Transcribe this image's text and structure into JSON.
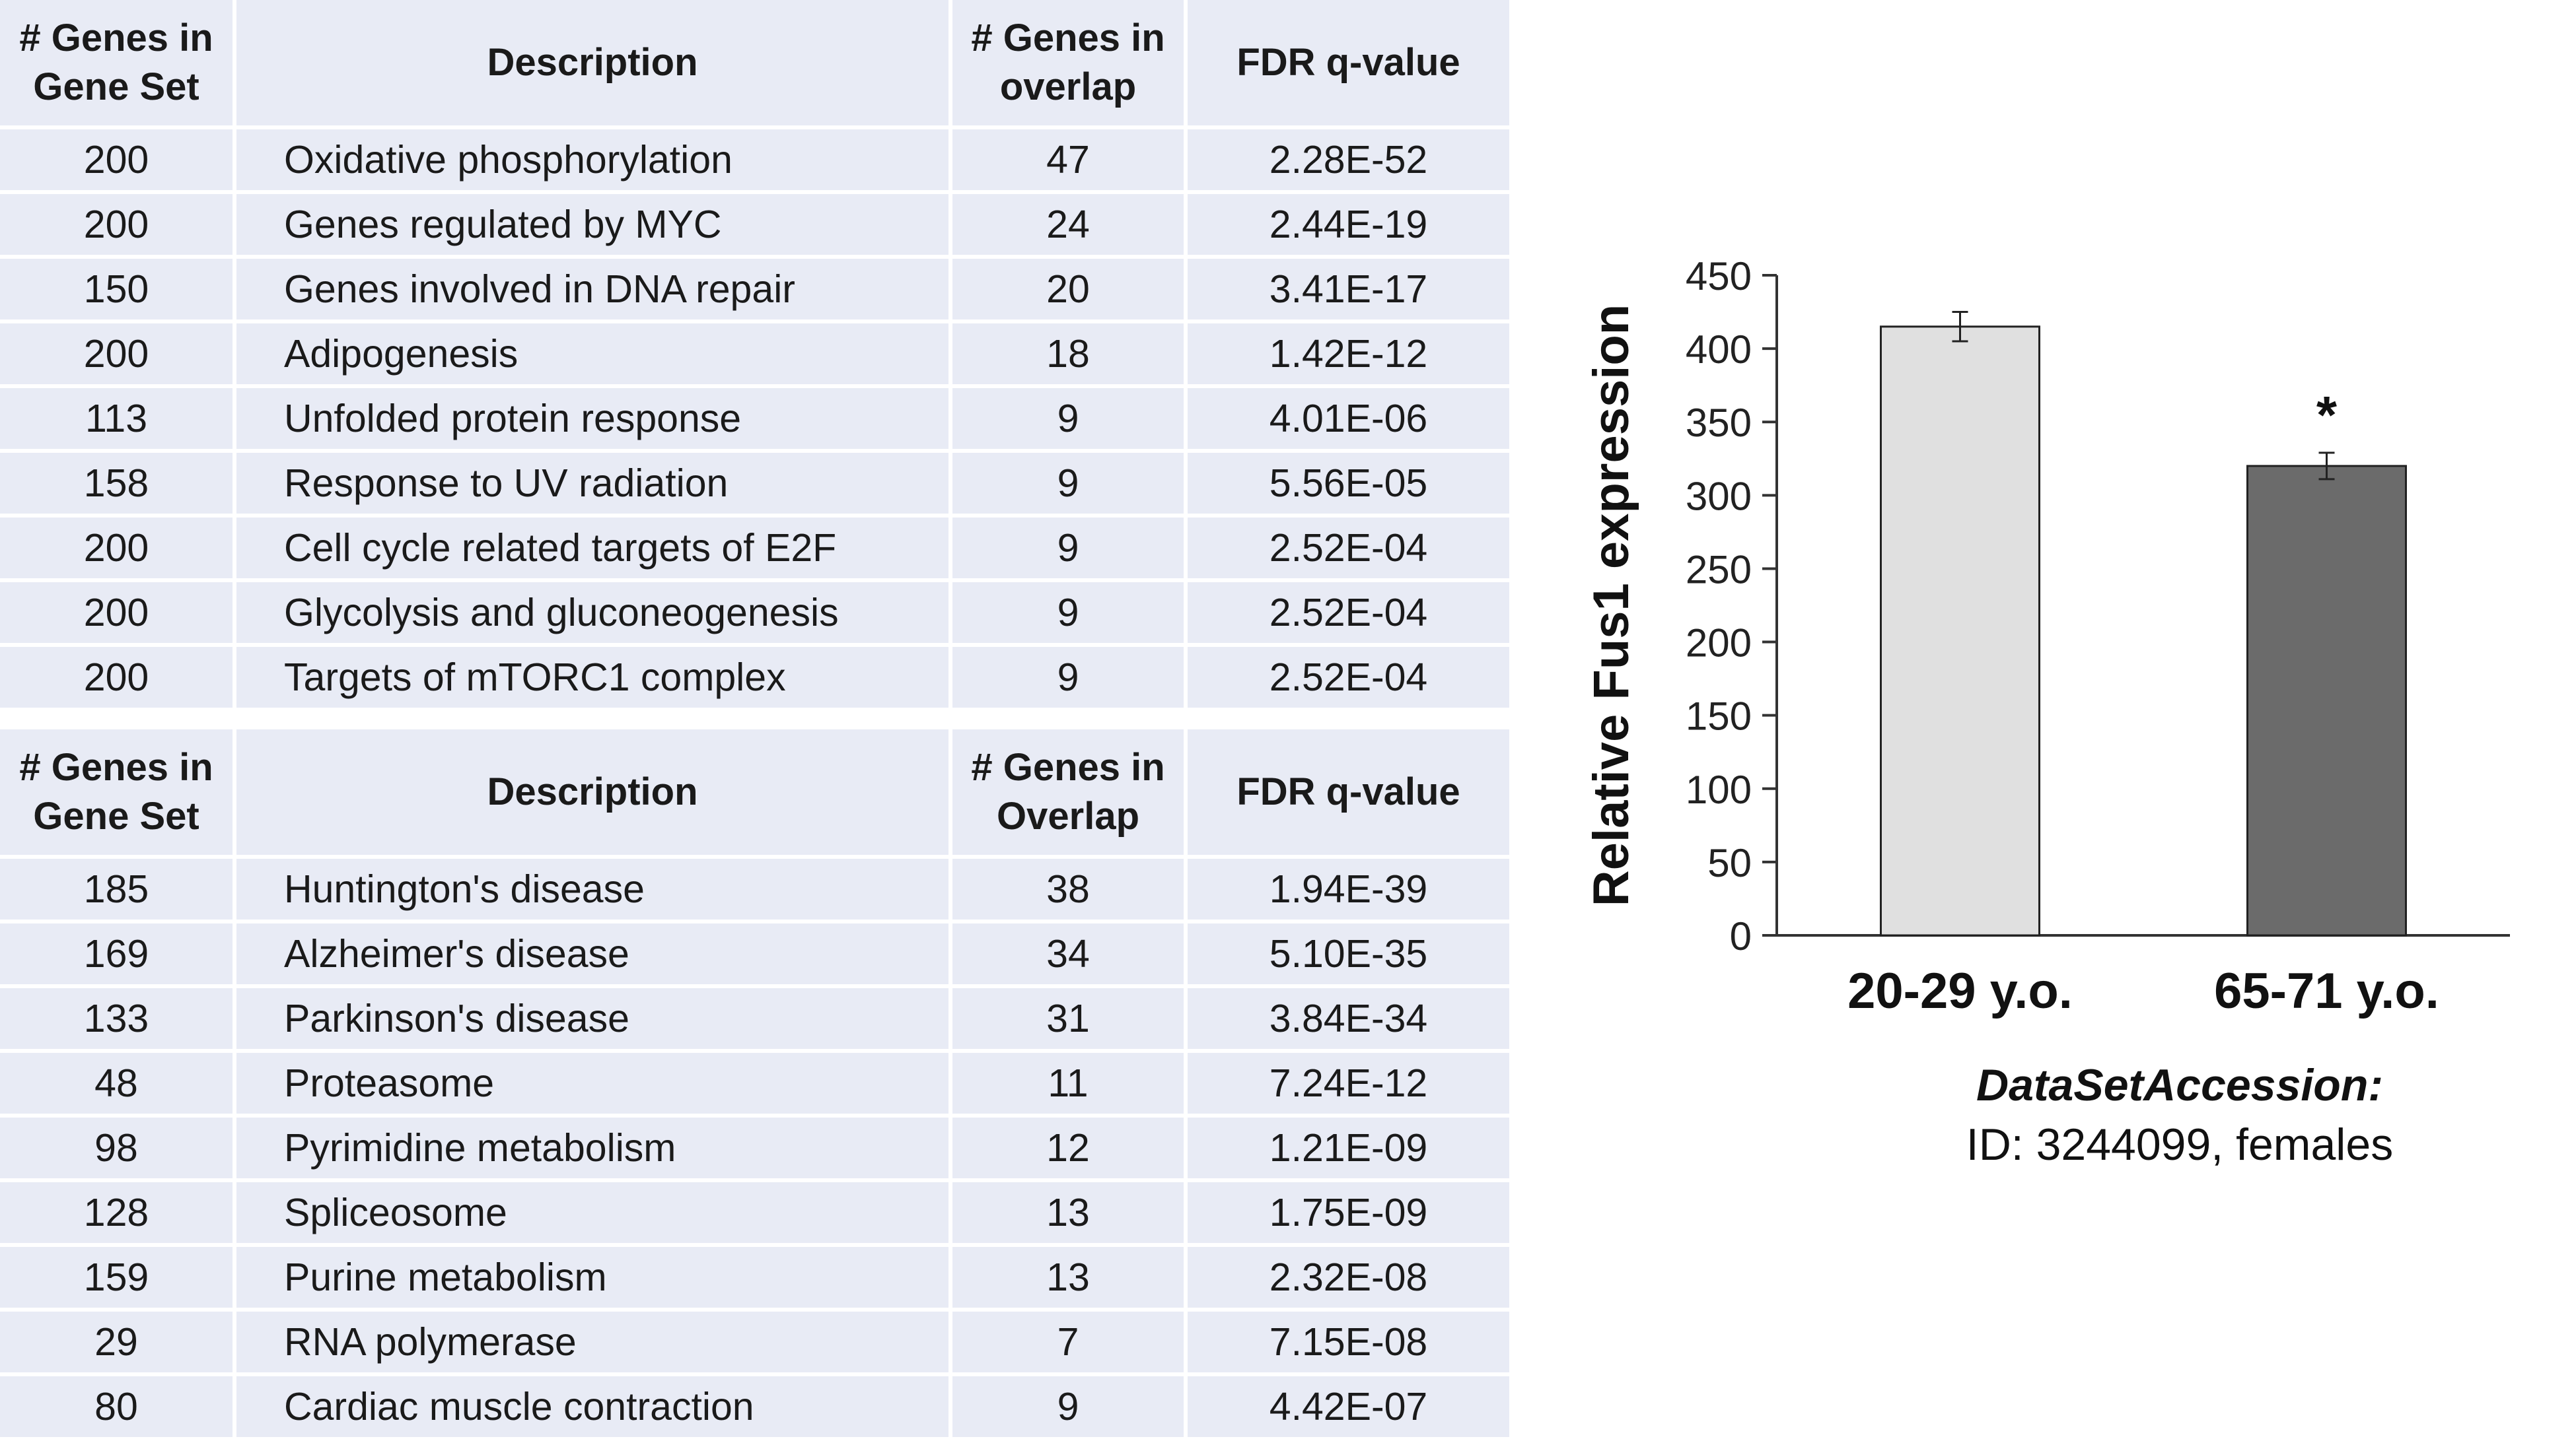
{
  "tables": {
    "top": {
      "headers": [
        "# Genes in Gene Set",
        "Description",
        "# Genes in overlap",
        "FDR q-value"
      ],
      "rows": [
        [
          "200",
          "Oxidative phosphorylation",
          "47",
          "2.28E-52"
        ],
        [
          "200",
          "Genes regulated by MYC",
          "24",
          "2.44E-19"
        ],
        [
          "150",
          "Genes involved in DNA repair",
          "20",
          "3.41E-17"
        ],
        [
          "200",
          "Adipogenesis",
          "18",
          "1.42E-12"
        ],
        [
          "113",
          "Unfolded protein response",
          "9",
          "4.01E-06"
        ],
        [
          "158",
          "Response to UV radiation",
          "9",
          "5.56E-05"
        ],
        [
          "200",
          "Cell cycle related targets of E2F",
          "9",
          "2.52E-04"
        ],
        [
          "200",
          "Glycolysis and gluconeogenesis",
          "9",
          "2.52E-04"
        ],
        [
          "200",
          "Targets of mTORC1 complex",
          "9",
          "2.52E-04"
        ]
      ]
    },
    "bottom": {
      "headers": [
        "# Genes in Gene Set",
        "Description",
        "# Genes in Overlap",
        "FDR q-value"
      ],
      "rows": [
        [
          "185",
          "Huntington's disease",
          "38",
          "1.94E-39"
        ],
        [
          "169",
          "Alzheimer's disease",
          "34",
          "5.10E-35"
        ],
        [
          "133",
          "Parkinson's disease",
          "31",
          "3.84E-34"
        ],
        [
          "48",
          "Proteasome",
          "11",
          "7.24E-12"
        ],
        [
          "98",
          "Pyrimidine metabolism",
          "12",
          "1.21E-09"
        ],
        [
          "128",
          "Spliceosome",
          "13",
          "1.75E-09"
        ],
        [
          "159",
          "Purine metabolism",
          "13",
          "2.32E-08"
        ],
        [
          "29",
          "RNA polymerase",
          "7",
          "7.15E-08"
        ],
        [
          "80",
          "Cardiac muscle contraction",
          "9",
          "4.42E-07"
        ]
      ]
    }
  },
  "chart_data": {
    "type": "bar",
    "categories": [
      "20-29 y.o.",
      "65-71 y.o."
    ],
    "values": [
      415,
      320
    ],
    "errors": [
      10,
      9
    ],
    "significance": [
      "",
      "*"
    ],
    "ylabel": "Relative Fus1 expression",
    "ylim": [
      0,
      450
    ],
    "yticks": [
      0,
      50,
      100,
      150,
      200,
      250,
      300,
      350,
      400,
      450
    ],
    "bar_colors": [
      "#e0e0e0",
      "#6b6b6b"
    ],
    "grid": false
  },
  "caption": {
    "title": "DataSetAccession:",
    "id_line": "ID: 3244099, females"
  }
}
